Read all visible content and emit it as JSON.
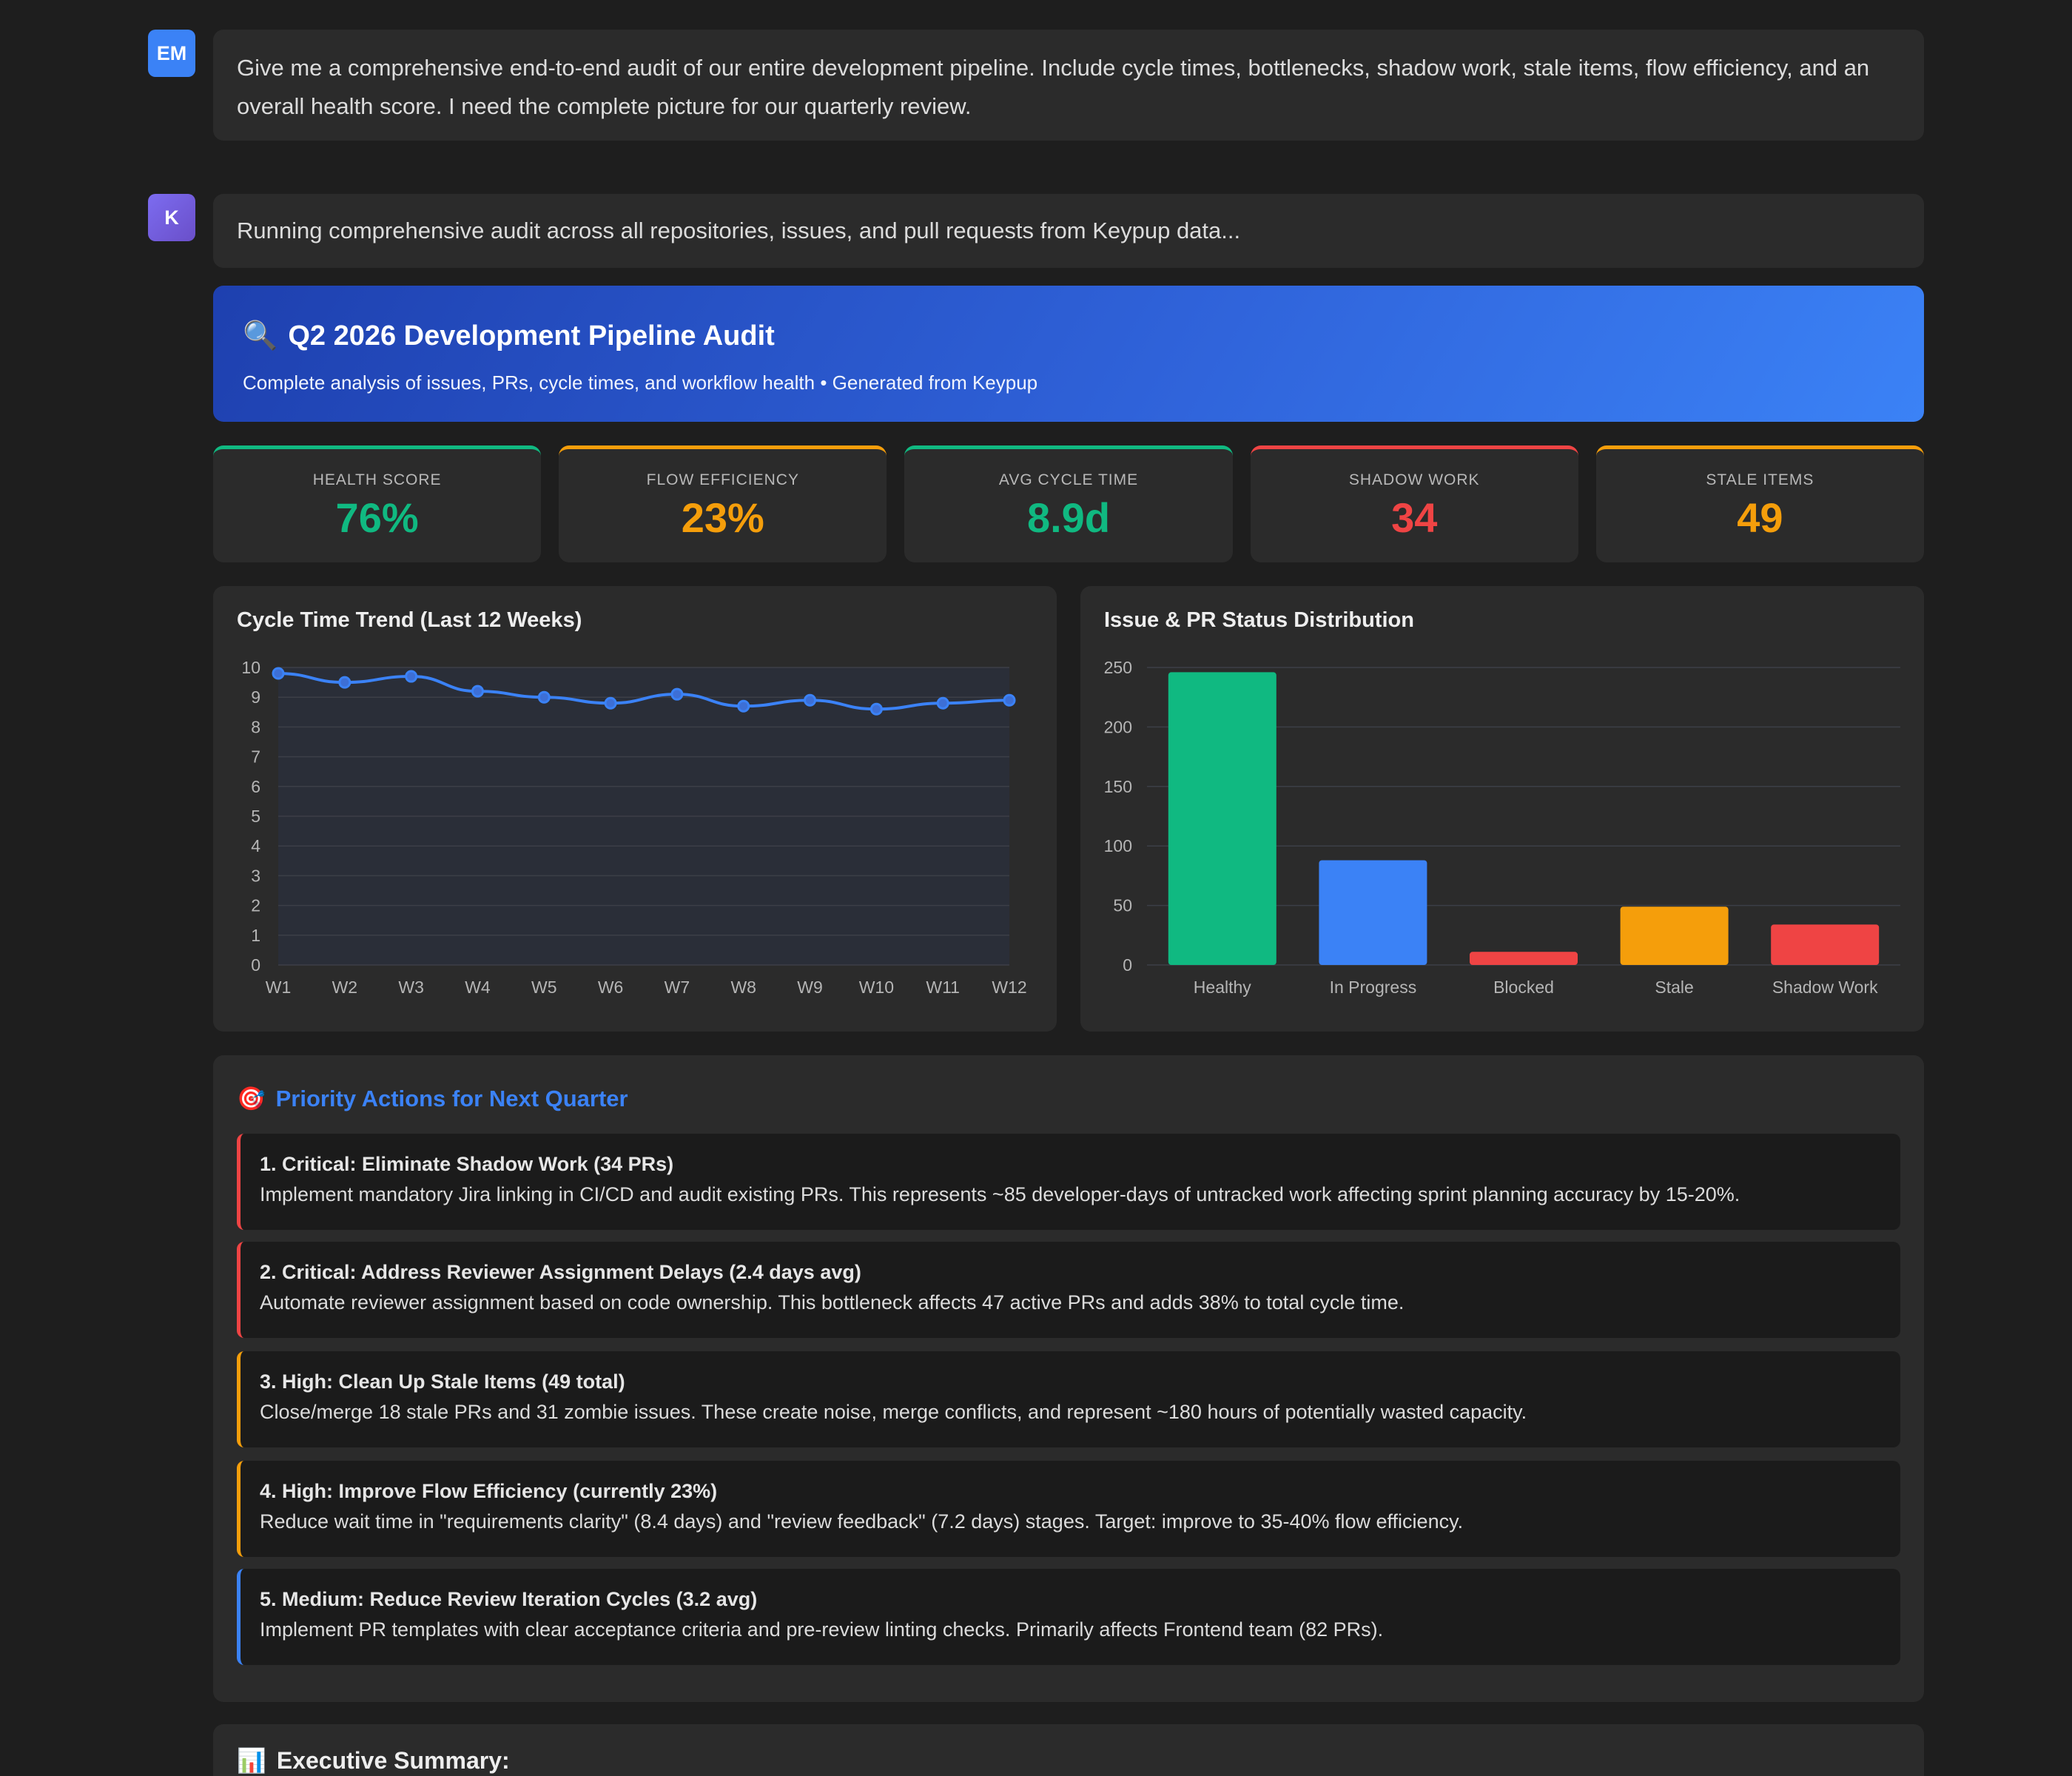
{
  "user": {
    "initials": "EM",
    "message": "Give me a comprehensive end-to-end audit of our entire development pipeline. Include cycle times, bottlenecks, shadow work, stale items, flow efficiency, and an overall health score. I need the complete picture for our quarterly review."
  },
  "bot": {
    "initials": "K",
    "message": "Running comprehensive audit across all repositories, issues, and pull requests from Keypup data..."
  },
  "hero": {
    "icon": "🔍",
    "title": "Q2 2026 Development Pipeline Audit",
    "subtitle": "Complete analysis of issues, PRs, cycle times, and workflow health • Generated from Keypup"
  },
  "kpis": [
    {
      "label": "HEALTH SCORE",
      "value": "76%",
      "color": "#10b981"
    },
    {
      "label": "FLOW EFFICIENCY",
      "value": "23%",
      "color": "#f59e0b"
    },
    {
      "label": "AVG CYCLE TIME",
      "value": "8.9d",
      "color": "#10b981"
    },
    {
      "label": "SHADOW WORK",
      "value": "34",
      "color": "#ef4444"
    },
    {
      "label": "STALE ITEMS",
      "value": "49",
      "color": "#f59e0b"
    }
  ],
  "chart_data": [
    {
      "type": "line",
      "title": "Cycle Time Trend (Last 12 Weeks)",
      "categories": [
        "W1",
        "W2",
        "W3",
        "W4",
        "W5",
        "W6",
        "W7",
        "W8",
        "W9",
        "W10",
        "W11",
        "W12"
      ],
      "values": [
        9.8,
        9.5,
        9.7,
        9.2,
        9.0,
        8.8,
        9.1,
        8.7,
        8.9,
        8.6,
        8.8,
        8.9
      ],
      "ylim": [
        0,
        10
      ],
      "yticks": [
        0,
        1,
        2,
        3,
        4,
        5,
        6,
        7,
        8,
        9,
        10
      ],
      "color": "#3b82f6",
      "grid": true
    },
    {
      "type": "bar",
      "title": "Issue & PR Status Distribution",
      "categories": [
        "Healthy",
        "In Progress",
        "Blocked",
        "Stale",
        "Shadow Work"
      ],
      "values": [
        246,
        88,
        11,
        49,
        34
      ],
      "colors": [
        "#10b981",
        "#3b82f6",
        "#ef4444",
        "#f59e0b",
        "#ef4444"
      ],
      "ylim": [
        0,
        250
      ],
      "yticks": [
        0,
        50,
        100,
        150,
        200,
        250
      ],
      "grid": true
    }
  ],
  "actions": {
    "icon": "🎯",
    "title": "Priority Actions for Next Quarter",
    "items": [
      {
        "title": "1. Critical: Eliminate Shadow Work (34 PRs)",
        "text": "Implement mandatory Jira linking in CI/CD and audit existing PRs. This represents ~85 developer-days of untracked work affecting sprint planning accuracy by 15-20%.",
        "color": "#ef4444"
      },
      {
        "title": "2. Critical: Address Reviewer Assignment Delays (2.4 days avg)",
        "text": "Automate reviewer assignment based on code ownership. This bottleneck affects 47 active PRs and adds 38% to total cycle time.",
        "color": "#ef4444"
      },
      {
        "title": "3. High: Clean Up Stale Items (49 total)",
        "text": "Close/merge 18 stale PRs and 31 zombie issues. These create noise, merge conflicts, and represent ~180 hours of potentially wasted capacity.",
        "color": "#f59e0b"
      },
      {
        "title": "4. High: Improve Flow Efficiency (currently 23%)",
        "text": "Reduce wait time in \"requirements clarity\" (8.4 days) and \"review feedback\" (7.2 days) stages. Target: improve to 35-40% flow efficiency.",
        "color": "#f59e0b"
      },
      {
        "title": "5. Medium: Reduce Review Iteration Cycles (3.2 avg)",
        "text": "Implement PR templates with clear acceptance criteria and pre-review linting checks. Primarily affects Frontend team (82 PRs).",
        "color": "#3b82f6"
      }
    ]
  },
  "summary": {
    "icon": "📊",
    "title": "Executive Summary:"
  }
}
